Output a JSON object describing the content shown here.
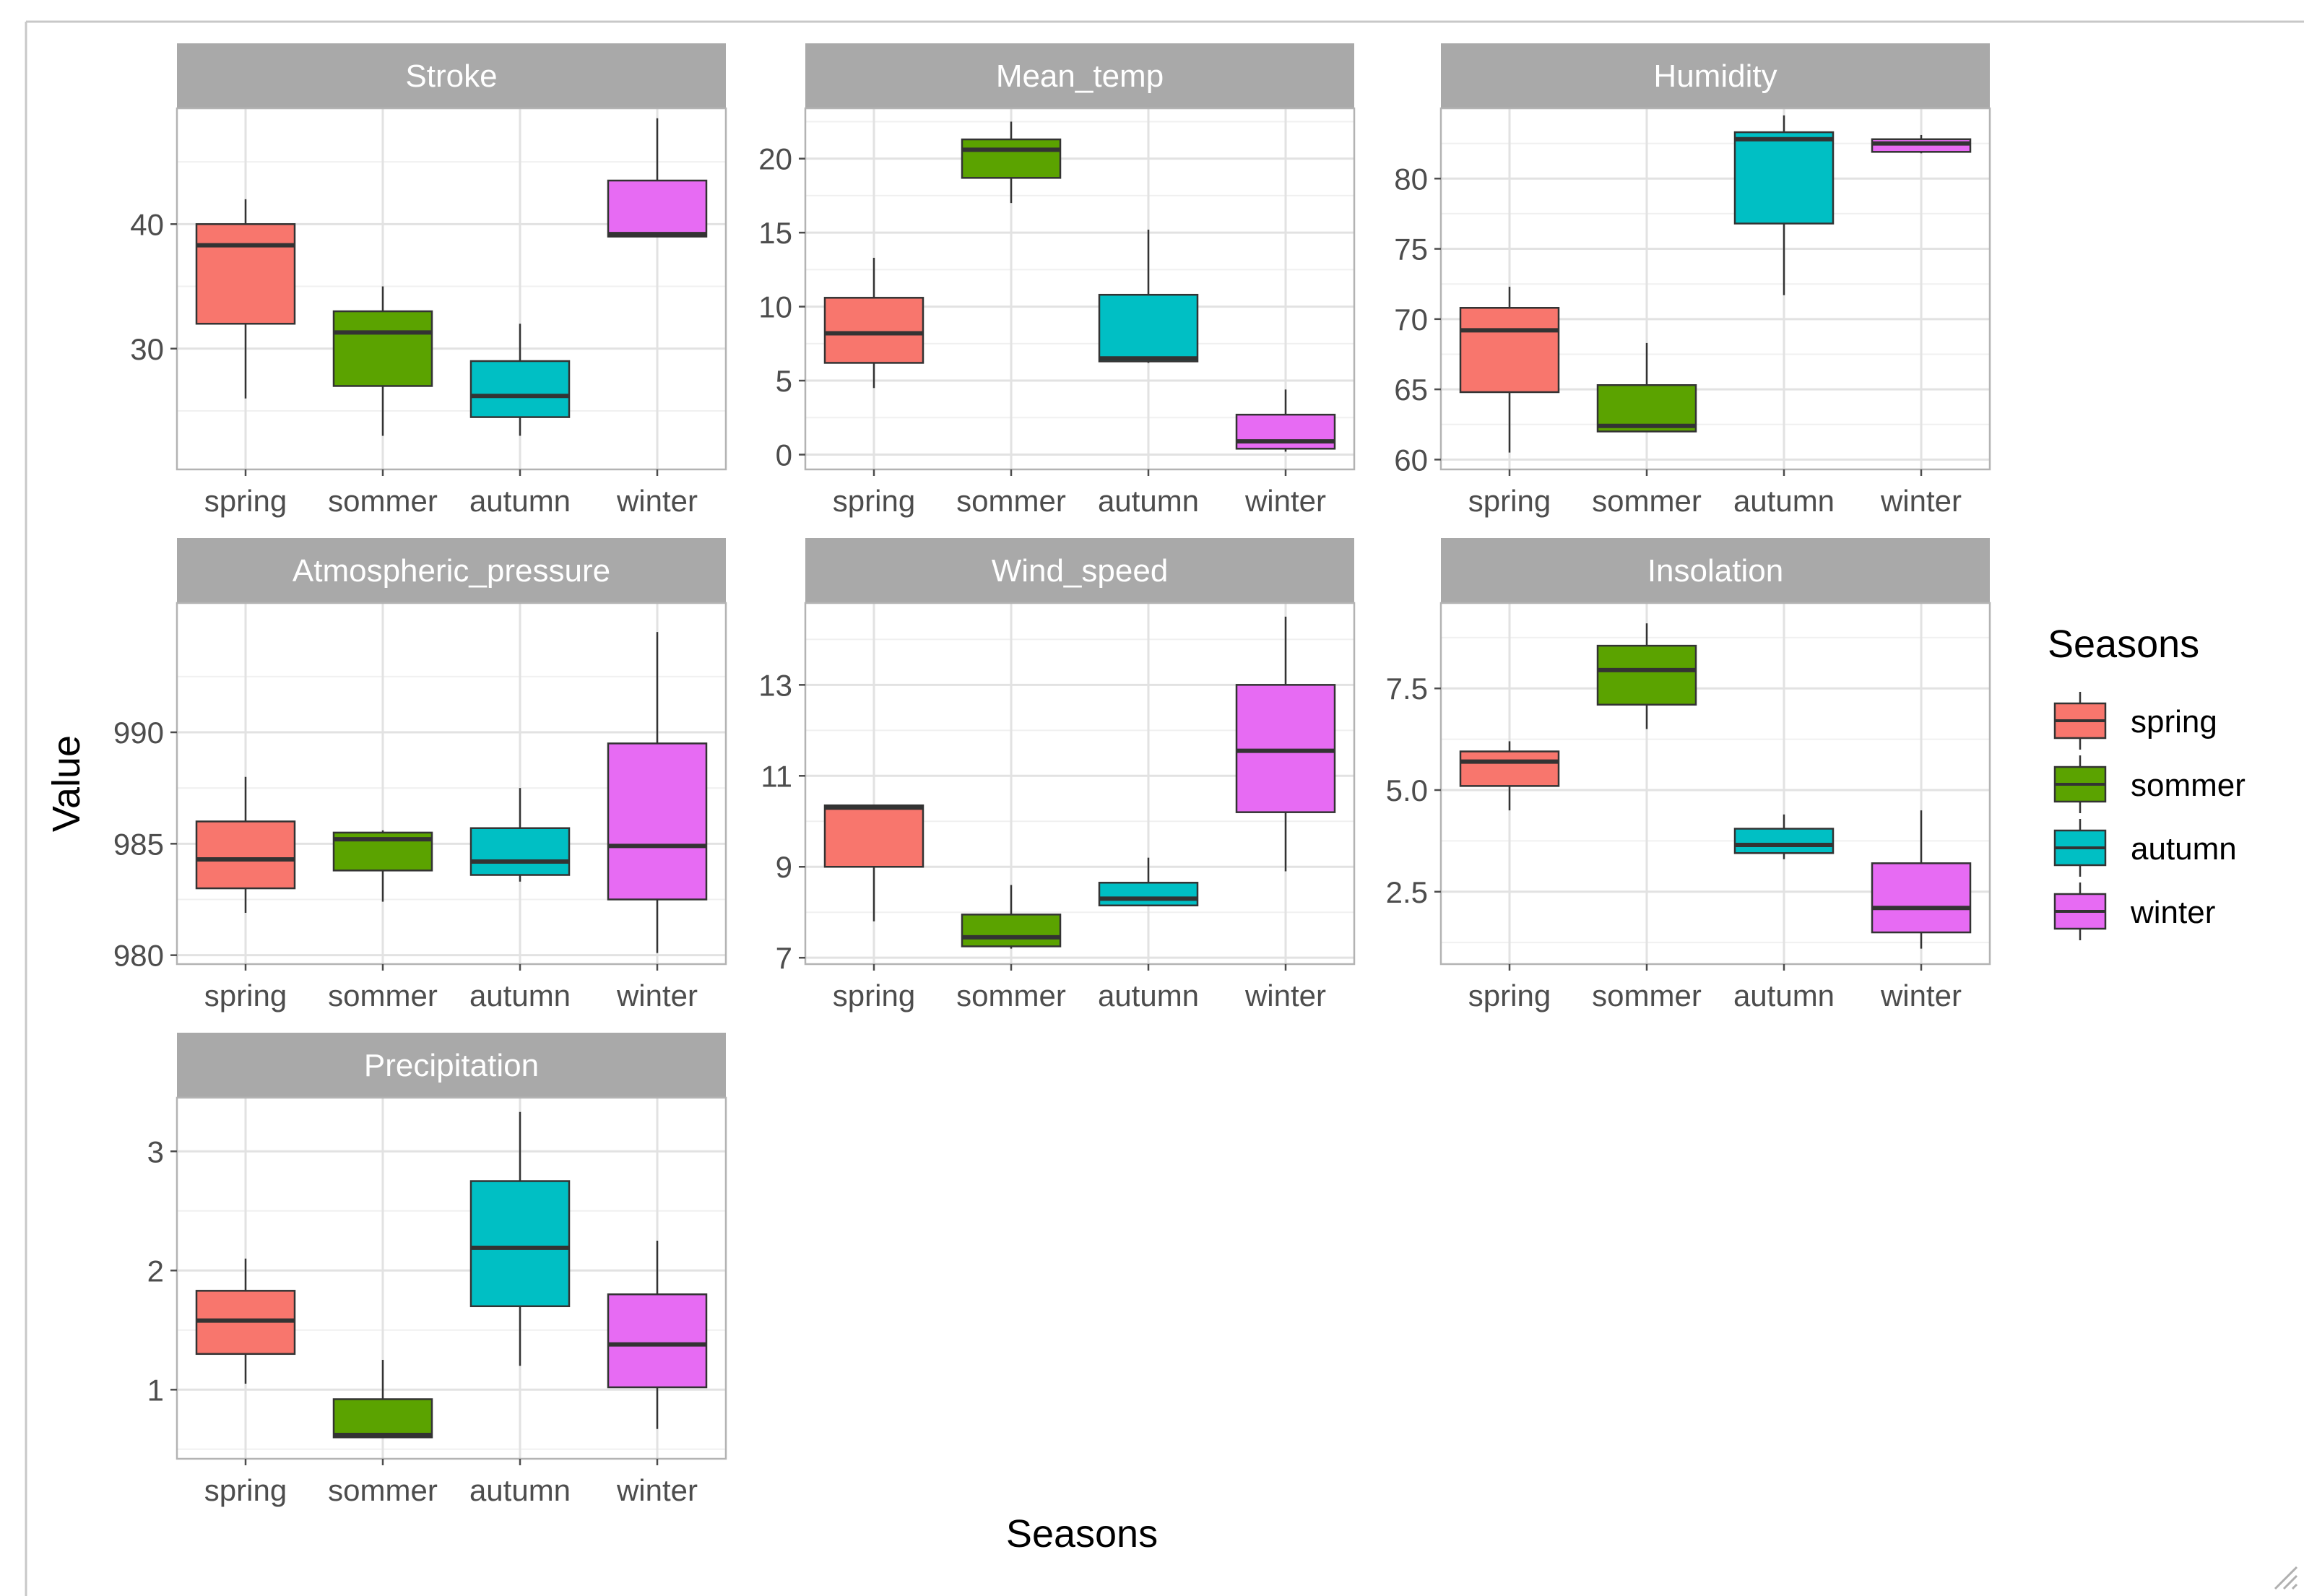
{
  "chart_data": {
    "type": "boxplot",
    "layout": "facet_wrap",
    "xlabel": "Seasons",
    "ylabel": "Value",
    "categories": [
      "spring",
      "sommer",
      "autumn",
      "winter"
    ],
    "legend": {
      "title": "Seasons",
      "position": "right",
      "entries": [
        {
          "label": "spring",
          "color": "#F8766D"
        },
        {
          "label": "sommer",
          "color": "#5BA300"
        },
        {
          "label": "autumn",
          "color": "#00BFC4"
        },
        {
          "label": "winter",
          "color": "#E76BF3"
        }
      ]
    },
    "panels": [
      {
        "title": "Stroke",
        "ylim": [
          20.3,
          49.3
        ],
        "ticks": [
          "30",
          "40"
        ],
        "tick_values": [
          30,
          40
        ],
        "boxes": [
          {
            "category": "spring",
            "min": 26.0,
            "q1": 32.0,
            "median": 38.3,
            "q3": 40.0,
            "max": 42.0
          },
          {
            "category": "sommer",
            "min": 23.0,
            "q1": 27.0,
            "median": 31.3,
            "q3": 33.0,
            "max": 35.0
          },
          {
            "category": "autumn",
            "min": 23.0,
            "q1": 24.5,
            "median": 26.2,
            "q3": 29.0,
            "max": 32.0
          },
          {
            "category": "winter",
            "min": 39.0,
            "q1": 39.0,
            "median": 39.2,
            "q3": 43.5,
            "max": 48.5
          }
        ]
      },
      {
        "title": "Mean_temp",
        "ylim": [
          -1.0,
          23.4
        ],
        "ticks": [
          "0",
          "5",
          "10",
          "15",
          "20"
        ],
        "tick_values": [
          0,
          5,
          10,
          15,
          20
        ],
        "boxes": [
          {
            "category": "spring",
            "min": 4.5,
            "q1": 6.2,
            "median": 8.2,
            "q3": 10.6,
            "max": 13.3
          },
          {
            "category": "sommer",
            "min": 17.0,
            "q1": 18.7,
            "median": 20.6,
            "q3": 21.3,
            "max": 22.5
          },
          {
            "category": "autumn",
            "min": 6.2,
            "q1": 6.3,
            "median": 6.5,
            "q3": 10.8,
            "max": 15.2
          },
          {
            "category": "winter",
            "min": 0.2,
            "q1": 0.4,
            "median": 0.9,
            "q3": 2.7,
            "max": 4.4
          }
        ]
      },
      {
        "title": "Humidity",
        "ylim": [
          59.3,
          85.0
        ],
        "ticks": [
          "60",
          "65",
          "70",
          "75",
          "80"
        ],
        "tick_values": [
          60,
          65,
          70,
          75,
          80
        ],
        "boxes": [
          {
            "category": "spring",
            "min": 60.5,
            "q1": 64.8,
            "median": 69.2,
            "q3": 70.8,
            "max": 72.3
          },
          {
            "category": "sommer",
            "min": 62.0,
            "q1": 62.0,
            "median": 62.4,
            "q3": 65.3,
            "max": 68.3
          },
          {
            "category": "autumn",
            "min": 71.7,
            "q1": 76.8,
            "median": 82.8,
            "q3": 83.3,
            "max": 84.5
          },
          {
            "category": "winter",
            "min": 81.8,
            "q1": 81.9,
            "median": 82.5,
            "q3": 82.8,
            "max": 83.1
          }
        ]
      },
      {
        "title": "Atmospheric_pressure",
        "ylim": [
          979.6,
          995.8
        ],
        "ticks": [
          "980",
          "985",
          "990"
        ],
        "tick_values": [
          980,
          985,
          990
        ],
        "boxes": [
          {
            "category": "spring",
            "min": 981.9,
            "q1": 983.0,
            "median": 984.3,
            "q3": 986.0,
            "max": 988.0
          },
          {
            "category": "sommer",
            "min": 982.4,
            "q1": 983.8,
            "median": 985.2,
            "q3": 985.5,
            "max": 985.6
          },
          {
            "category": "autumn",
            "min": 983.3,
            "q1": 983.6,
            "median": 984.2,
            "q3": 985.7,
            "max": 987.5
          },
          {
            "category": "winter",
            "min": 980.1,
            "q1": 982.5,
            "median": 984.9,
            "q3": 989.5,
            "max": 994.5
          }
        ]
      },
      {
        "title": "Wind_speed",
        "ylim": [
          6.86,
          14.8
        ],
        "ticks": [
          "7",
          "9",
          "11",
          "13"
        ],
        "tick_values": [
          7,
          9,
          11,
          13
        ],
        "boxes": [
          {
            "category": "spring",
            "min": 7.8,
            "q1": 9.0,
            "median": 10.3,
            "q3": 10.35,
            "max": 10.35
          },
          {
            "category": "sommer",
            "min": 7.2,
            "q1": 7.25,
            "median": 7.45,
            "q3": 7.95,
            "max": 8.6
          },
          {
            "category": "autumn",
            "min": 8.15,
            "q1": 8.15,
            "median": 8.3,
            "q3": 8.65,
            "max": 9.2
          },
          {
            "category": "winter",
            "min": 8.9,
            "q1": 10.2,
            "median": 11.55,
            "q3": 13.0,
            "max": 14.5
          }
        ]
      },
      {
        "title": "Insolation",
        "ylim": [
          0.72,
          9.6
        ],
        "ticks": [
          "2.5",
          "5.0",
          "7.5"
        ],
        "tick_values": [
          2.5,
          5.0,
          7.5
        ],
        "boxes": [
          {
            "category": "spring",
            "min": 4.5,
            "q1": 5.1,
            "median": 5.7,
            "q3": 5.95,
            "max": 6.2
          },
          {
            "category": "sommer",
            "min": 6.5,
            "q1": 7.1,
            "median": 7.95,
            "q3": 8.55,
            "max": 9.1
          },
          {
            "category": "autumn",
            "min": 3.3,
            "q1": 3.45,
            "median": 3.65,
            "q3": 4.05,
            "max": 4.4
          },
          {
            "category": "winter",
            "min": 1.1,
            "q1": 1.5,
            "median": 2.1,
            "q3": 3.2,
            "max": 4.5
          }
        ]
      },
      {
        "title": "Precipitation",
        "ylim": [
          0.42,
          3.45
        ],
        "ticks": [
          "1",
          "2",
          "3"
        ],
        "tick_values": [
          1,
          2,
          3
        ],
        "boxes": [
          {
            "category": "spring",
            "min": 1.05,
            "q1": 1.3,
            "median": 1.58,
            "q3": 1.83,
            "max": 2.1
          },
          {
            "category": "sommer",
            "min": 0.6,
            "q1": 0.6,
            "median": 0.62,
            "q3": 0.92,
            "max": 1.25
          },
          {
            "category": "autumn",
            "min": 1.2,
            "q1": 1.7,
            "median": 2.19,
            "q3": 2.75,
            "max": 3.33
          },
          {
            "category": "winter",
            "min": 0.67,
            "q1": 1.02,
            "median": 1.38,
            "q3": 1.8,
            "max": 2.25
          }
        ]
      }
    ]
  }
}
